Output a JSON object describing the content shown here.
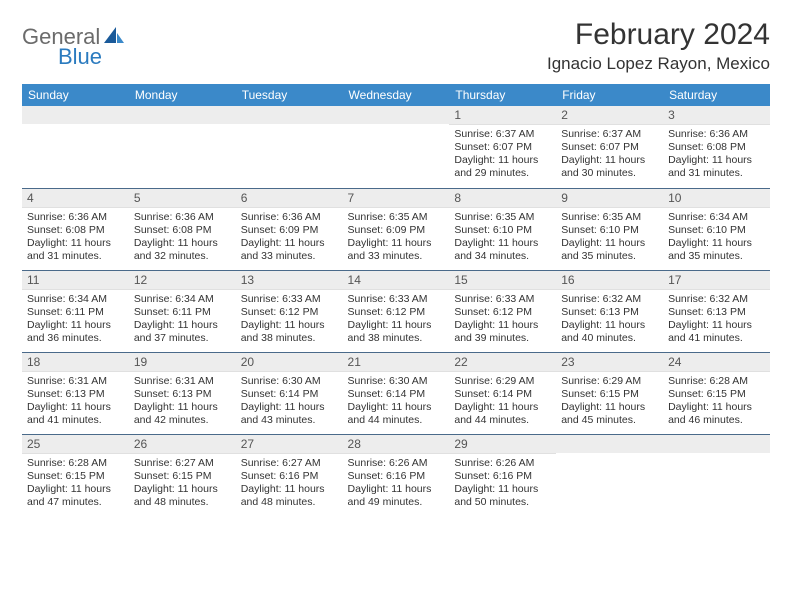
{
  "logo": {
    "word1": "General",
    "word2": "Blue"
  },
  "title": "February 2024",
  "location": "Ignacio Lopez Rayon, Mexico",
  "header_bg": "#3b89c9",
  "header_fg": "#ffffff",
  "daynum_bg": "#ededed",
  "row_border": "#4a6a8a",
  "weekdays": [
    "Sunday",
    "Monday",
    "Tuesday",
    "Wednesday",
    "Thursday",
    "Friday",
    "Saturday"
  ],
  "weeks": [
    [
      null,
      null,
      null,
      null,
      {
        "n": "1",
        "sr": "Sunrise: 6:37 AM",
        "ss": "Sunset: 6:07 PM",
        "dl": "Daylight: 11 hours and 29 minutes."
      },
      {
        "n": "2",
        "sr": "Sunrise: 6:37 AM",
        "ss": "Sunset: 6:07 PM",
        "dl": "Daylight: 11 hours and 30 minutes."
      },
      {
        "n": "3",
        "sr": "Sunrise: 6:36 AM",
        "ss": "Sunset: 6:08 PM",
        "dl": "Daylight: 11 hours and 31 minutes."
      }
    ],
    [
      {
        "n": "4",
        "sr": "Sunrise: 6:36 AM",
        "ss": "Sunset: 6:08 PM",
        "dl": "Daylight: 11 hours and 31 minutes."
      },
      {
        "n": "5",
        "sr": "Sunrise: 6:36 AM",
        "ss": "Sunset: 6:08 PM",
        "dl": "Daylight: 11 hours and 32 minutes."
      },
      {
        "n": "6",
        "sr": "Sunrise: 6:36 AM",
        "ss": "Sunset: 6:09 PM",
        "dl": "Daylight: 11 hours and 33 minutes."
      },
      {
        "n": "7",
        "sr": "Sunrise: 6:35 AM",
        "ss": "Sunset: 6:09 PM",
        "dl": "Daylight: 11 hours and 33 minutes."
      },
      {
        "n": "8",
        "sr": "Sunrise: 6:35 AM",
        "ss": "Sunset: 6:10 PM",
        "dl": "Daylight: 11 hours and 34 minutes."
      },
      {
        "n": "9",
        "sr": "Sunrise: 6:35 AM",
        "ss": "Sunset: 6:10 PM",
        "dl": "Daylight: 11 hours and 35 minutes."
      },
      {
        "n": "10",
        "sr": "Sunrise: 6:34 AM",
        "ss": "Sunset: 6:10 PM",
        "dl": "Daylight: 11 hours and 35 minutes."
      }
    ],
    [
      {
        "n": "11",
        "sr": "Sunrise: 6:34 AM",
        "ss": "Sunset: 6:11 PM",
        "dl": "Daylight: 11 hours and 36 minutes."
      },
      {
        "n": "12",
        "sr": "Sunrise: 6:34 AM",
        "ss": "Sunset: 6:11 PM",
        "dl": "Daylight: 11 hours and 37 minutes."
      },
      {
        "n": "13",
        "sr": "Sunrise: 6:33 AM",
        "ss": "Sunset: 6:12 PM",
        "dl": "Daylight: 11 hours and 38 minutes."
      },
      {
        "n": "14",
        "sr": "Sunrise: 6:33 AM",
        "ss": "Sunset: 6:12 PM",
        "dl": "Daylight: 11 hours and 38 minutes."
      },
      {
        "n": "15",
        "sr": "Sunrise: 6:33 AM",
        "ss": "Sunset: 6:12 PM",
        "dl": "Daylight: 11 hours and 39 minutes."
      },
      {
        "n": "16",
        "sr": "Sunrise: 6:32 AM",
        "ss": "Sunset: 6:13 PM",
        "dl": "Daylight: 11 hours and 40 minutes."
      },
      {
        "n": "17",
        "sr": "Sunrise: 6:32 AM",
        "ss": "Sunset: 6:13 PM",
        "dl": "Daylight: 11 hours and 41 minutes."
      }
    ],
    [
      {
        "n": "18",
        "sr": "Sunrise: 6:31 AM",
        "ss": "Sunset: 6:13 PM",
        "dl": "Daylight: 11 hours and 41 minutes."
      },
      {
        "n": "19",
        "sr": "Sunrise: 6:31 AM",
        "ss": "Sunset: 6:13 PM",
        "dl": "Daylight: 11 hours and 42 minutes."
      },
      {
        "n": "20",
        "sr": "Sunrise: 6:30 AM",
        "ss": "Sunset: 6:14 PM",
        "dl": "Daylight: 11 hours and 43 minutes."
      },
      {
        "n": "21",
        "sr": "Sunrise: 6:30 AM",
        "ss": "Sunset: 6:14 PM",
        "dl": "Daylight: 11 hours and 44 minutes."
      },
      {
        "n": "22",
        "sr": "Sunrise: 6:29 AM",
        "ss": "Sunset: 6:14 PM",
        "dl": "Daylight: 11 hours and 44 minutes."
      },
      {
        "n": "23",
        "sr": "Sunrise: 6:29 AM",
        "ss": "Sunset: 6:15 PM",
        "dl": "Daylight: 11 hours and 45 minutes."
      },
      {
        "n": "24",
        "sr": "Sunrise: 6:28 AM",
        "ss": "Sunset: 6:15 PM",
        "dl": "Daylight: 11 hours and 46 minutes."
      }
    ],
    [
      {
        "n": "25",
        "sr": "Sunrise: 6:28 AM",
        "ss": "Sunset: 6:15 PM",
        "dl": "Daylight: 11 hours and 47 minutes."
      },
      {
        "n": "26",
        "sr": "Sunrise: 6:27 AM",
        "ss": "Sunset: 6:15 PM",
        "dl": "Daylight: 11 hours and 48 minutes."
      },
      {
        "n": "27",
        "sr": "Sunrise: 6:27 AM",
        "ss": "Sunset: 6:16 PM",
        "dl": "Daylight: 11 hours and 48 minutes."
      },
      {
        "n": "28",
        "sr": "Sunrise: 6:26 AM",
        "ss": "Sunset: 6:16 PM",
        "dl": "Daylight: 11 hours and 49 minutes."
      },
      {
        "n": "29",
        "sr": "Sunrise: 6:26 AM",
        "ss": "Sunset: 6:16 PM",
        "dl": "Daylight: 11 hours and 50 minutes."
      },
      null,
      null
    ]
  ]
}
